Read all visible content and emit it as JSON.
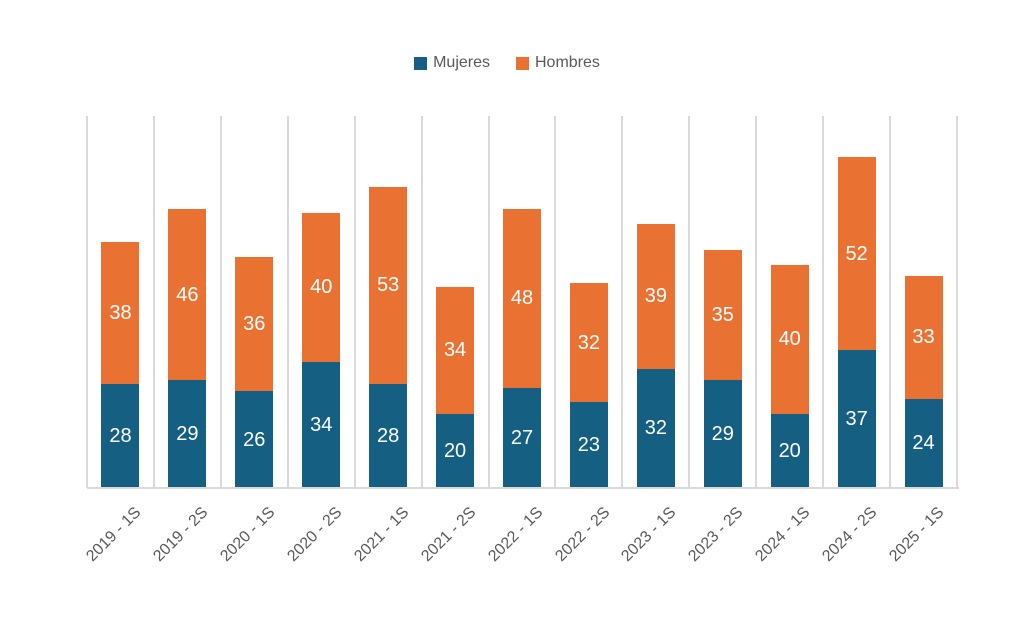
{
  "background": "#FFFFFF",
  "legend": {
    "position": "top-center",
    "items": [
      {
        "label": "Mujeres",
        "color": "#156082"
      },
      {
        "label": "Hombres",
        "color": "#E97132"
      }
    ]
  },
  "axis": {
    "label_color": "#595959",
    "line_color": "#D9D9D9"
  },
  "chart_data": {
    "type": "bar",
    "subtype": "stacked-column",
    "title": "",
    "xlabel": "",
    "ylabel": "",
    "categories": [
      "2019 - 1S",
      "2019 - 2S",
      "2020 - 1S",
      "2020 - 2S",
      "2021 - 1S",
      "2021 - 2S",
      "2022 - 1S",
      "2022 - 2S",
      "2023 - 1S",
      "2023 - 2S",
      "2024 - 1S",
      "2024 - 2S",
      "2025 - 1S"
    ],
    "series": [
      {
        "name": "Mujeres",
        "color": "#156082",
        "values": [
          28,
          29,
          26,
          34,
          28,
          20,
          27,
          23,
          32,
          29,
          20,
          37,
          24
        ]
      },
      {
        "name": "Hombres",
        "color": "#E97132",
        "values": [
          38,
          46,
          36,
          40,
          53,
          34,
          48,
          32,
          39,
          35,
          40,
          52,
          33
        ]
      }
    ],
    "stack_totals": [
      66,
      75,
      62,
      74,
      81,
      54,
      75,
      55,
      71,
      64,
      60,
      89,
      57
    ],
    "ylim": [
      0,
      100
    ],
    "y_axis_visible": false,
    "gridlines": "vertical-category-separators",
    "gridline_color": "#D9D9D9",
    "legend_position": "top-center",
    "data_labels": {
      "visible": true,
      "color": "#FFFFFF",
      "position": "center",
      "font_size_px": 20
    },
    "x_tick_rotation_deg": 45
  }
}
